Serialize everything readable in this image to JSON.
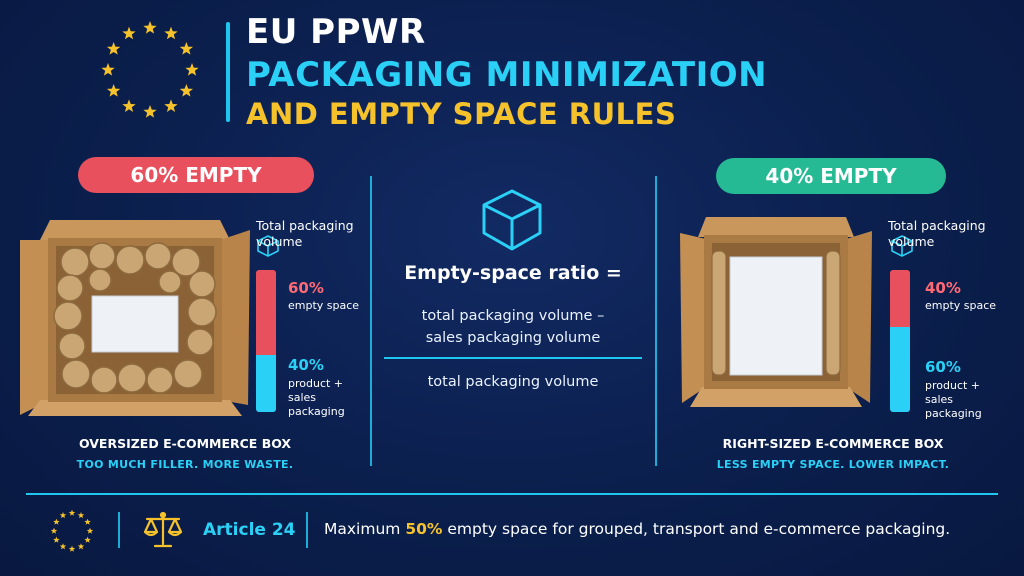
{
  "header": {
    "title_line1": "EU PPWR",
    "title_line2": "PACKAGING MINIMIZATION",
    "title_line3": "AND EMPTY SPACE RULES"
  },
  "colors": {
    "background": "#0b1f4d",
    "accent_cyan": "#2ad0f5",
    "accent_yellow": "#f5c22b",
    "empty_red": "#e8505e",
    "green": "#25b994"
  },
  "left_panel": {
    "badge": "60% EMPTY",
    "legend_title": "Total packaging volume",
    "empty_pct": "60%",
    "empty_label": "empty space",
    "product_pct": "40%",
    "product_label": "product + sales packaging",
    "empty_fraction": 0.6,
    "caption_title": "OVERSIZED E-COMMERCE BOX",
    "caption_sub": "TOO MUCH FILLER. MORE WASTE."
  },
  "right_panel": {
    "badge": "40% EMPTY",
    "legend_title": "Total packaging volume",
    "empty_pct": "40%",
    "empty_label": "empty space",
    "product_pct": "60%",
    "product_label": "product + sales packaging",
    "empty_fraction": 0.4,
    "caption_title": "RIGHT-SIZED E-COMMERCE BOX",
    "caption_sub": "LESS EMPTY SPACE. LOWER IMPACT."
  },
  "formula": {
    "label": "Empty-space ratio =",
    "numerator_line1": "total packaging volume –",
    "numerator_line2": "sales packaging volume",
    "denominator": "total packaging volume"
  },
  "footer": {
    "article": "Article 24",
    "text_before": "Maximum ",
    "highlight": "50%",
    "text_after": " empty space for grouped, transport and e-commerce packaging."
  },
  "icons": [
    "eu-flag-icon",
    "cube-icon",
    "scales-icon"
  ]
}
